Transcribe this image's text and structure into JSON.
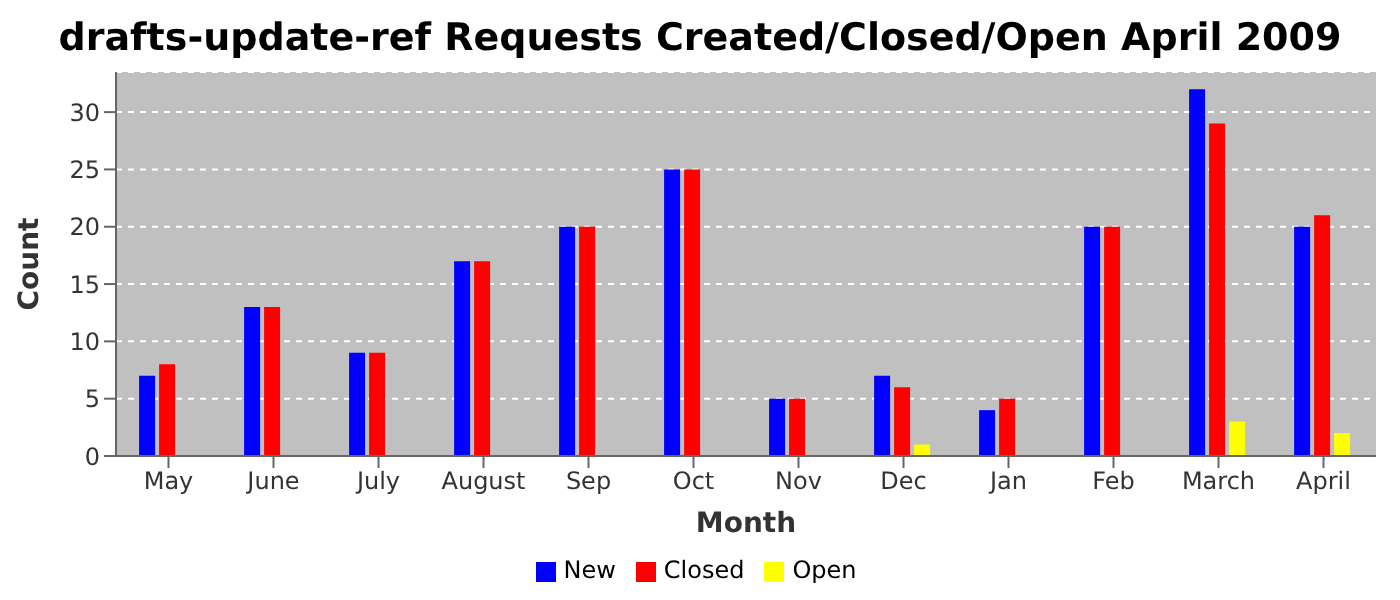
{
  "chart_data": {
    "type": "bar",
    "title": "drafts-update-ref Requests Created/Closed/Open April 2009",
    "xlabel": "Month",
    "ylabel": "Count",
    "categories": [
      "May",
      "June",
      "July",
      "August",
      "Sep",
      "Oct",
      "Nov",
      "Dec",
      "Jan",
      "Feb",
      "March",
      "April"
    ],
    "series": [
      {
        "name": "New",
        "color": "#0000ff",
        "values": [
          7,
          13,
          9,
          17,
          20,
          25,
          5,
          7,
          4,
          20,
          32,
          20
        ]
      },
      {
        "name": "Closed",
        "color": "#ff0000",
        "values": [
          8,
          13,
          9,
          17,
          20,
          25,
          5,
          6,
          5,
          20,
          29,
          21
        ]
      },
      {
        "name": "Open",
        "color": "#ffff00",
        "values": [
          0,
          0,
          0,
          0,
          0,
          0,
          0,
          1,
          0,
          0,
          3,
          2
        ]
      }
    ],
    "ylim": [
      0,
      33.5
    ],
    "yticks": [
      0,
      5,
      10,
      15,
      20,
      25,
      30
    ],
    "grid": "y",
    "legend": "bottom"
  }
}
